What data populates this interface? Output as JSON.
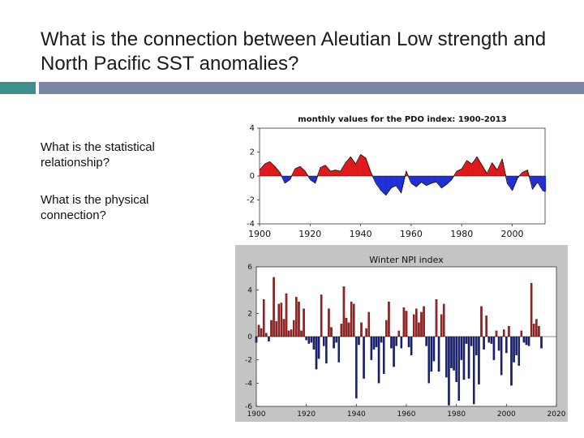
{
  "slide": {
    "title": "What is the connection between Aleutian Low strength and North Pacific SST anomalies?",
    "bullets": [
      "What is the statistical relationship?",
      "What is the physical connection?"
    ]
  },
  "colors": {
    "title_accent": "#3f8f8c",
    "title_bar": "#7a86a8",
    "positive": "#e01818",
    "negative": "#1f2fd6",
    "npi_positive": "#a51d1d",
    "npi_negative": "#15207f",
    "npi_frame": "#c4c4c4"
  },
  "chart_data": [
    {
      "type": "area",
      "title": "monthly values for the PDO index: 1900-2013",
      "xlim": [
        1900,
        2013
      ],
      "ylim": [
        -4,
        4
      ],
      "x_ticks": [
        "1900",
        "1920",
        "1940",
        "1960",
        "1980",
        "2000"
      ],
      "y_ticks": [
        "4",
        "2",
        "0",
        "-2",
        "-4"
      ],
      "grid": false,
      "positive_color": "red",
      "negative_color": "blue",
      "series": [
        {
          "x": [
            1900,
            1902,
            1904,
            1906,
            1908,
            1910,
            1912,
            1914,
            1916,
            1918,
            1920,
            1922,
            1924,
            1926,
            1928,
            1930,
            1932,
            1934,
            1936,
            1938,
            1940,
            1942,
            1944,
            1946,
            1948,
            1950,
            1952,
            1954,
            1956,
            1958,
            1960,
            1962,
            1964,
            1966,
            1968,
            1970,
            1972,
            1974,
            1976,
            1978,
            1980,
            1982,
            1984,
            1986,
            1988,
            1990,
            1992,
            1994,
            1996,
            1998,
            2000,
            2002,
            2004,
            2006,
            2008,
            2010,
            2012,
            2013
          ],
          "values": [
            0.5,
            1.0,
            1.2,
            0.8,
            0.3,
            -0.6,
            -0.3,
            0.6,
            0.8,
            0.4,
            -0.3,
            -0.6,
            0.7,
            0.9,
            0.4,
            0.5,
            0.4,
            1.1,
            1.6,
            1.0,
            1.8,
            1.5,
            0.3,
            -0.6,
            -1.2,
            -1.6,
            -1.0,
            -0.8,
            -1.4,
            0.4,
            -0.6,
            -0.9,
            -0.5,
            -0.8,
            -0.6,
            -0.5,
            -1.0,
            -0.7,
            -0.3,
            0.4,
            0.6,
            1.3,
            1.0,
            1.6,
            0.9,
            0.2,
            1.1,
            0.5,
            1.4,
            -0.6,
            -1.2,
            -0.2,
            0.3,
            0.5,
            -1.1,
            -0.5,
            -1.2,
            -1.3
          ]
        }
      ]
    },
    {
      "type": "bar",
      "title": "Winter NPI index",
      "xlim": [
        1900,
        2020
      ],
      "ylim": [
        -6,
        6
      ],
      "x_ticks": [
        "1900",
        "1920",
        "1940",
        "1960",
        "1980",
        "2000",
        "2020"
      ],
      "y_ticks": [
        "6",
        "4",
        "2",
        "0",
        "-2",
        "-4",
        "-6"
      ],
      "grid": false,
      "series": [
        {
          "x": [
            1900,
            1901,
            1902,
            1903,
            1904,
            1905,
            1906,
            1907,
            1908,
            1909,
            1910,
            1911,
            1912,
            1913,
            1914,
            1915,
            1916,
            1917,
            1918,
            1919,
            1920,
            1921,
            1922,
            1923,
            1924,
            1925,
            1926,
            1927,
            1928,
            1929,
            1930,
            1931,
            1932,
            1933,
            1934,
            1935,
            1936,
            1937,
            1938,
            1939,
            1940,
            1941,
            1942,
            1943,
            1944,
            1945,
            1946,
            1947,
            1948,
            1949,
            1950,
            1951,
            1952,
            1953,
            1954,
            1955,
            1956,
            1957,
            1958,
            1959,
            1960,
            1961,
            1962,
            1963,
            1964,
            1965,
            1966,
            1967,
            1968,
            1969,
            1970,
            1971,
            1972,
            1973,
            1974,
            1975,
            1976,
            1977,
            1978,
            1979,
            1980,
            1981,
            1982,
            1983,
            1984,
            1985,
            1986,
            1987,
            1988,
            1989,
            1990,
            1991,
            1992,
            1993,
            1994,
            1995,
            1996,
            1997,
            1998,
            1999,
            2000,
            2001,
            2002,
            2003,
            2004,
            2005,
            2006,
            2007,
            2008,
            2009,
            2010,
            2011,
            2012,
            2013,
            2014
          ],
          "values": [
            -0.5,
            1.0,
            0.7,
            3.2,
            0.3,
            -0.4,
            1.4,
            5.1,
            1.3,
            2.8,
            2.9,
            1.5,
            3.7,
            0.5,
            0.6,
            1.4,
            3.4,
            3.0,
            0.5,
            2.4,
            -0.3,
            -0.6,
            -0.5,
            -1.1,
            -2.8,
            -1.9,
            3.6,
            -0.8,
            -2.3,
            2.4,
            0.8,
            -1.0,
            -0.5,
            -2.2,
            1.1,
            4.3,
            1.6,
            1.2,
            3.0,
            2.8,
            -5.3,
            -0.7,
            1.2,
            -3.6,
            0.7,
            2.1,
            -2.0,
            -1.1,
            -0.9,
            -4.0,
            -0.5,
            -3.2,
            1.4,
            3.0,
            -1.0,
            -2.6,
            -0.8,
            0.5,
            -1.0,
            2.5,
            2.2,
            -0.9,
            -1.6,
            1.9,
            2.4,
            1.2,
            2.1,
            2.6,
            -0.8,
            -4.0,
            -3.0,
            -2.1,
            3.2,
            -3.0,
            1.9,
            2.8,
            -3.5,
            -5.9,
            -2.7,
            -2.9,
            -3.9,
            -5.5,
            -2.0,
            -3.7,
            -0.6,
            -3.6,
            -0.8,
            -5.8,
            -1.6,
            -4.1,
            2.6,
            -1.1,
            1.8,
            -0.5,
            -0.6,
            -2.0,
            0.5,
            -1.2,
            -3.3,
            0.6,
            -1.4,
            0.9,
            -4.2,
            -2.2,
            -1.6,
            -2.5,
            0.5,
            -0.5,
            -0.7,
            -0.8,
            4.6,
            1.1,
            1.5,
            0.9,
            -1.0
          ]
        }
      ]
    }
  ]
}
